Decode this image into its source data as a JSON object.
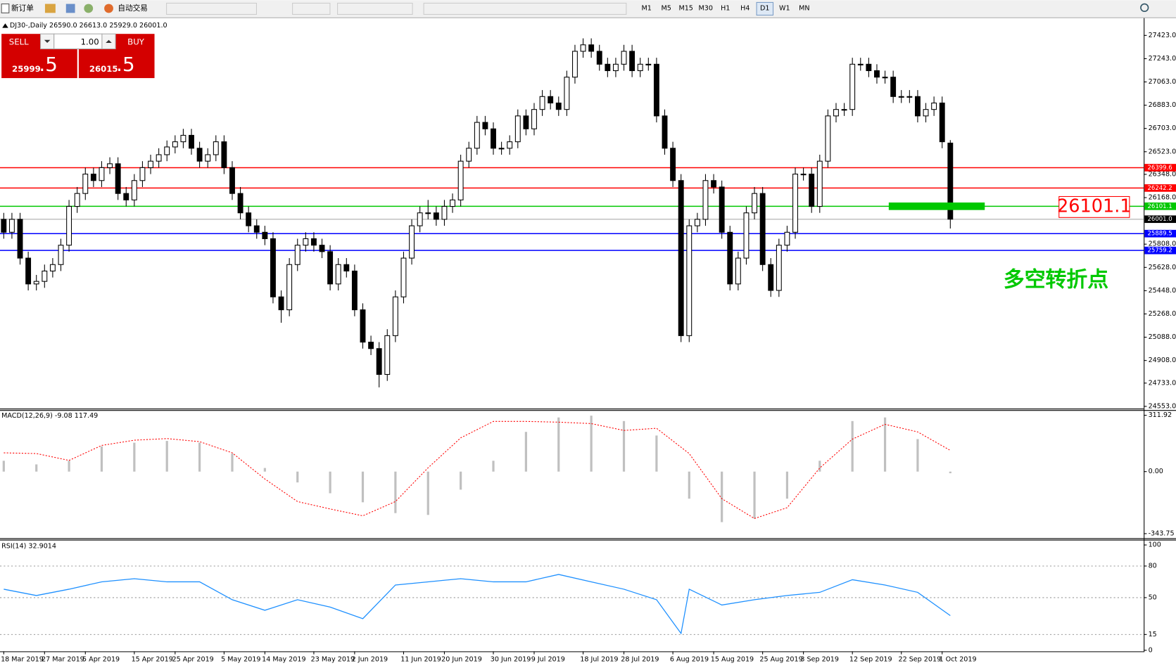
{
  "toolbar": {
    "new_order": "新订单",
    "auto_trading": "自动交易",
    "timeframes": [
      "M1",
      "M5",
      "M15",
      "M30",
      "H1",
      "H4",
      "D1",
      "W1",
      "MN"
    ],
    "selected": "D1"
  },
  "trade_panel": {
    "sell": "SELL",
    "buy": "BUY",
    "lots": "1.00",
    "bid_main": "25999",
    "bid_pips": ".5",
    "ask_main": "26015",
    "ask_pips": ".5"
  },
  "annotation": {
    "text": "多空转折点",
    "color": "#00c800"
  },
  "chart_data": [
    {
      "type": "candlestick",
      "title": "DJ30-,Daily  26590.0 26613.0 25929.0 26001.0",
      "categories": [
        "18 Mar 2019",
        null,
        null,
        null,
        null,
        "27 Mar 2019",
        null,
        null,
        null,
        null,
        "5 Apr 2019",
        null,
        null,
        null,
        null,
        null,
        "15 Apr 2019",
        null,
        null,
        null,
        null,
        "25 Apr 2019",
        null,
        null,
        null,
        null,
        null,
        "5 May 2019",
        null,
        null,
        null,
        null,
        "14 May 2019",
        null,
        null,
        null,
        null,
        null,
        "23 May 2019",
        null,
        null,
        null,
        null,
        "2 Jun 2019",
        null,
        null,
        null,
        null,
        null,
        "11 Jun 2019",
        null,
        null,
        null,
        null,
        "20 Jun 2019",
        null,
        null,
        null,
        null,
        null,
        "30 Jun 2019",
        null,
        null,
        null,
        null,
        "9 Jul 2019",
        null,
        null,
        null,
        null,
        null,
        "18 Jul 2019",
        null,
        null,
        null,
        null,
        "28 Jul 2019",
        null,
        null,
        null,
        null,
        null,
        "6 Aug 2019",
        null,
        null,
        null,
        null,
        "15 Aug 2019",
        null,
        null,
        null,
        null,
        null,
        "25 Aug 2019",
        null,
        null,
        null,
        null,
        "3 Sep 2019",
        null,
        null,
        null,
        null,
        null,
        "12 Sep 2019",
        null,
        null,
        null,
        null,
        null,
        "22 Sep 2019",
        null,
        null,
        null,
        null,
        "1 Oct 2019",
        null
      ],
      "ohlc": [
        [
          26000,
          26050,
          25850,
          25900
        ],
        [
          25900,
          26050,
          25850,
          26000
        ],
        [
          26000,
          26050,
          25650,
          25700
        ],
        [
          25700,
          25750,
          25450,
          25500
        ],
        [
          25500,
          25570,
          25450,
          25520
        ],
        [
          25520,
          25650,
          25470,
          25600
        ],
        [
          25600,
          25700,
          25550,
          25650
        ],
        [
          25650,
          25850,
          25600,
          25800
        ],
        [
          25800,
          26150,
          25750,
          26100
        ],
        [
          26100,
          26250,
          26050,
          26200
        ],
        [
          26200,
          26400,
          26150,
          26350
        ],
        [
          26350,
          26400,
          26250,
          26300
        ],
        [
          26300,
          26450,
          26250,
          26400
        ],
        [
          26400,
          26480,
          26350,
          26430
        ],
        [
          26430,
          26480,
          26150,
          26200
        ],
        [
          26200,
          26250,
          26100,
          26150
        ],
        [
          26150,
          26350,
          26100,
          26300
        ],
        [
          26300,
          26450,
          26250,
          26400
        ],
        [
          26400,
          26500,
          26350,
          26450
        ],
        [
          26450,
          26550,
          26400,
          26500
        ],
        [
          26500,
          26610,
          26450,
          26560
        ],
        [
          26560,
          26650,
          26510,
          26600
        ],
        [
          26600,
          26700,
          26550,
          26650
        ],
        [
          26650,
          26700,
          26500,
          26550
        ],
        [
          26550,
          26600,
          26400,
          26450
        ],
        [
          26450,
          26550,
          26400,
          26500
        ],
        [
          26500,
          26650,
          26450,
          26600
        ],
        [
          26600,
          26650,
          26350,
          26400
        ],
        [
          26400,
          26450,
          26150,
          26200
        ],
        [
          26200,
          26250,
          26000,
          26050
        ],
        [
          26050,
          26100,
          25900,
          25950
        ],
        [
          25950,
          26000,
          25850,
          25900
        ],
        [
          25900,
          25950,
          25800,
          25850
        ],
        [
          25850,
          25900,
          25350,
          25400
        ],
        [
          25400,
          25450,
          25200,
          25300
        ],
        [
          25300,
          25700,
          25250,
          25650
        ],
        [
          25650,
          25850,
          25600,
          25800
        ],
        [
          25800,
          25900,
          25750,
          25850
        ],
        [
          25850,
          25900,
          25750,
          25800
        ],
        [
          25800,
          25850,
          25700,
          25750
        ],
        [
          25750,
          25800,
          25450,
          25500
        ],
        [
          25500,
          25700,
          25450,
          25650
        ],
        [
          25650,
          25700,
          25550,
          25600
        ],
        [
          25600,
          25650,
          25250,
          25300
        ],
        [
          25300,
          25350,
          25000,
          25050
        ],
        [
          25050,
          25100,
          24950,
          25000
        ],
        [
          25000,
          25050,
          24700,
          24800
        ],
        [
          24800,
          25150,
          24750,
          25100
        ],
        [
          25100,
          25450,
          25050,
          25400
        ],
        [
          25400,
          25750,
          25350,
          25700
        ],
        [
          25700,
          26000,
          25650,
          25950
        ],
        [
          25950,
          26100,
          25900,
          26050
        ],
        [
          26050,
          26150,
          26000,
          26050
        ],
        [
          26050,
          26100,
          25950,
          26000
        ],
        [
          26000,
          26150,
          25950,
          26100
        ],
        [
          26100,
          26200,
          26050,
          26150
        ],
        [
          26150,
          26500,
          26100,
          26450
        ],
        [
          26450,
          26600,
          26400,
          26550
        ],
        [
          26550,
          26800,
          26500,
          26750
        ],
        [
          26750,
          26800,
          26650,
          26700
        ],
        [
          26700,
          26750,
          26500,
          26550
        ],
        [
          26550,
          26600,
          26500,
          26550
        ],
        [
          26550,
          26650,
          26500,
          26600
        ],
        [
          26600,
          26850,
          26550,
          26800
        ],
        [
          26800,
          26850,
          26650,
          26700
        ],
        [
          26700,
          26900,
          26650,
          26850
        ],
        [
          26850,
          27000,
          26800,
          26950
        ],
        [
          26950,
          27000,
          26850,
          26900
        ],
        [
          26900,
          26950,
          26800,
          26850
        ],
        [
          26850,
          27150,
          26800,
          27100
        ],
        [
          27100,
          27350,
          27050,
          27300
        ],
        [
          27300,
          27400,
          27250,
          27350
        ],
        [
          27350,
          27400,
          27250,
          27300
        ],
        [
          27300,
          27350,
          27150,
          27200
        ],
        [
          27200,
          27250,
          27100,
          27150
        ],
        [
          27150,
          27250,
          27100,
          27200
        ],
        [
          27200,
          27350,
          27150,
          27300
        ],
        [
          27300,
          27350,
          27100,
          27150
        ],
        [
          27150,
          27250,
          27100,
          27200
        ],
        [
          27200,
          27250,
          27150,
          27200
        ],
        [
          27200,
          27250,
          26750,
          26800
        ],
        [
          26800,
          26850,
          26500,
          26550
        ],
        [
          26550,
          26600,
          26250,
          26300
        ],
        [
          26300,
          26350,
          25050,
          25100
        ],
        [
          25100,
          26000,
          25050,
          25950
        ],
        [
          25950,
          26050,
          25900,
          26000
        ],
        [
          26000,
          26350,
          25950,
          26300
        ],
        [
          26300,
          26350,
          26200,
          26250
        ],
        [
          26250,
          26300,
          25850,
          25900
        ],
        [
          25900,
          25950,
          25450,
          25500
        ],
        [
          25500,
          25750,
          25450,
          25700
        ],
        [
          25700,
          26100,
          25650,
          26050
        ],
        [
          26050,
          26250,
          26000,
          26200
        ],
        [
          26200,
          26250,
          25600,
          25650
        ],
        [
          25650,
          25700,
          25400,
          25450
        ],
        [
          25450,
          25850,
          25400,
          25800
        ],
        [
          25800,
          25950,
          25750,
          25900
        ],
        [
          25900,
          26400,
          25850,
          26350
        ],
        [
          26350,
          26400,
          26300,
          26350
        ],
        [
          26350,
          26400,
          26050,
          26100
        ],
        [
          26100,
          26500,
          26050,
          26450
        ],
        [
          26450,
          26850,
          26400,
          26800
        ],
        [
          26800,
          26900,
          26750,
          26850
        ],
        [
          26850,
          26900,
          26800,
          26850
        ],
        [
          26850,
          27250,
          26800,
          27200
        ],
        [
          27200,
          27250,
          27150,
          27200
        ],
        [
          27200,
          27250,
          27100,
          27150
        ],
        [
          27150,
          27200,
          27050,
          27100
        ],
        [
          27100,
          27150,
          27050,
          27100
        ],
        [
          27100,
          27150,
          26900,
          26950
        ],
        [
          26950,
          27000,
          26900,
          26950
        ],
        [
          26950,
          27000,
          26900,
          26950
        ],
        [
          26950,
          27000,
          26750,
          26800
        ],
        [
          26800,
          26900,
          26750,
          26850
        ],
        [
          26850,
          26950,
          26800,
          26900
        ],
        [
          26900,
          26950,
          26550,
          26600
        ],
        [
          26590,
          26613,
          25929,
          26001
        ]
      ],
      "ylim": [
        24536,
        27539
      ],
      "yticks": [
        {
          "value": 27423,
          "label": "27423.0"
        },
        {
          "value": 27243,
          "label": "27243.0"
        },
        {
          "value": 27063,
          "label": "27063.0"
        },
        {
          "value": 26883,
          "label": "26883.0"
        },
        {
          "value": 26703,
          "label": "26703.0"
        },
        {
          "value": 26523,
          "label": "26523.0"
        },
        {
          "value": 26348,
          "label": "26348.0"
        },
        {
          "value": 26168,
          "label": "26168.0"
        },
        {
          "value": 25808,
          "label": "25808.0"
        },
        {
          "value": 25628,
          "label": "25628.0"
        },
        {
          "value": 25448,
          "label": "25448.0"
        },
        {
          "value": 25268,
          "label": "25268.0"
        },
        {
          "value": 25088,
          "label": "25088.0"
        },
        {
          "value": 24908,
          "label": "24908.0"
        },
        {
          "value": 24733,
          "label": "24733.0"
        },
        {
          "value": 24553,
          "label": "24553.0"
        }
      ],
      "levels": [
        {
          "value": 26399.6,
          "color": "#ff0000"
        },
        {
          "value": 26242.2,
          "color": "#ff0000"
        },
        {
          "value": 26101.1,
          "color": "#00c800"
        },
        {
          "value": 26001,
          "label": "26001.0",
          "color": "#c0c0c0"
        },
        {
          "value": 25889.5,
          "color": "#0000ff"
        },
        {
          "value": 25759.2,
          "color": "#0000ff"
        }
      ]
    },
    {
      "type": "macd",
      "title": "MACD(12,26,9) -9.08 117.49",
      "x": [
        0,
        4,
        8,
        12,
        16,
        20,
        24,
        28,
        32,
        36,
        40,
        44,
        48,
        52,
        56,
        60,
        64,
        68,
        72,
        76,
        80,
        84,
        88,
        92,
        96,
        100,
        104,
        108,
        112,
        116
      ],
      "histogram": {
        "color": "#c0c0c0",
        "values": [
          60,
          40,
          60,
          140,
          160,
          170,
          160,
          100,
          20,
          -60,
          -120,
          -170,
          -230,
          -240,
          -100,
          60,
          220,
          300,
          310,
          280,
          200,
          -150,
          -280,
          -260,
          -150,
          60,
          280,
          300,
          180,
          -9.08
        ]
      },
      "signal": {
        "color": "#ff0000",
        "values": [
          104,
          100,
          62,
          145,
          174,
          183,
          166,
          104,
          -41,
          -166,
          -207,
          -245,
          -166,
          21,
          187,
          278,
          278,
          274,
          266,
          228,
          240,
          100,
          -150,
          -260,
          -200,
          20,
          180,
          262,
          220,
          117.49
        ]
      },
      "ylim": [
        -369,
        341
      ],
      "yticks": [
        311.92,
        {
          "value": 0,
          "label": "0.00"
        },
        -343.75
      ]
    },
    {
      "type": "line",
      "title": "RSI(14) 32.9014",
      "x": [
        0,
        4,
        8,
        12,
        16,
        20,
        24,
        28,
        32,
        36,
        40,
        44,
        48,
        52,
        56,
        60,
        64,
        68,
        72,
        76,
        80,
        83,
        84,
        88,
        92,
        96,
        100,
        104,
        108,
        112,
        116
      ],
      "values": [
        58,
        52,
        58,
        65,
        68,
        65,
        65,
        48,
        38,
        48,
        41,
        30,
        62,
        65,
        68,
        65,
        65,
        72,
        65,
        58,
        48,
        16,
        58,
        43,
        48,
        52,
        55,
        67,
        62,
        55,
        32.9014
      ],
      "color": "#1e90ff",
      "ylim": [
        -1,
        105
      ],
      "yticks": [
        100,
        80,
        50,
        15,
        0
      ],
      "levels": [
        80,
        50,
        15
      ]
    }
  ]
}
